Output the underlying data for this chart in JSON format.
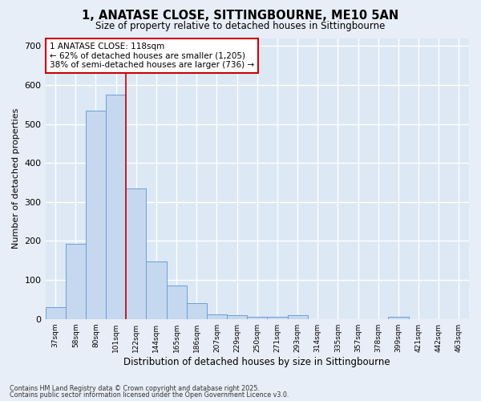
{
  "title_line1": "1, ANATASE CLOSE, SITTINGBOURNE, ME10 5AN",
  "title_line2": "Size of property relative to detached houses in Sittingbourne",
  "xlabel": "Distribution of detached houses by size in Sittingbourne",
  "ylabel": "Number of detached properties",
  "categories": [
    "37sqm",
    "58sqm",
    "80sqm",
    "101sqm",
    "122sqm",
    "144sqm",
    "165sqm",
    "186sqm",
    "207sqm",
    "229sqm",
    "250sqm",
    "271sqm",
    "293sqm",
    "314sqm",
    "335sqm",
    "357sqm",
    "378sqm",
    "399sqm",
    "421sqm",
    "442sqm",
    "463sqm"
  ],
  "values": [
    30,
    192,
    534,
    576,
    334,
    148,
    86,
    40,
    12,
    10,
    5,
    5,
    10,
    0,
    0,
    0,
    0,
    5,
    0,
    0,
    0
  ],
  "bar_color": "#c5d8ef",
  "bar_edge_color": "#6a9fd8",
  "background_color": "#dce8f4",
  "fig_background_color": "#e8eef7",
  "grid_color": "#ffffff",
  "red_line_index": 4,
  "annotation_text": "1 ANATASE CLOSE: 118sqm\n← 62% of detached houses are smaller (1,205)\n38% of semi-detached houses are larger (736) →",
  "annotation_box_color": "#ffffff",
  "annotation_box_edge_color": "#cc0000",
  "ylim": [
    0,
    720
  ],
  "yticks": [
    0,
    100,
    200,
    300,
    400,
    500,
    600,
    700
  ],
  "footer_line1": "Contains HM Land Registry data © Crown copyright and database right 2025.",
  "footer_line2": "Contains public sector information licensed under the Open Government Licence v3.0."
}
